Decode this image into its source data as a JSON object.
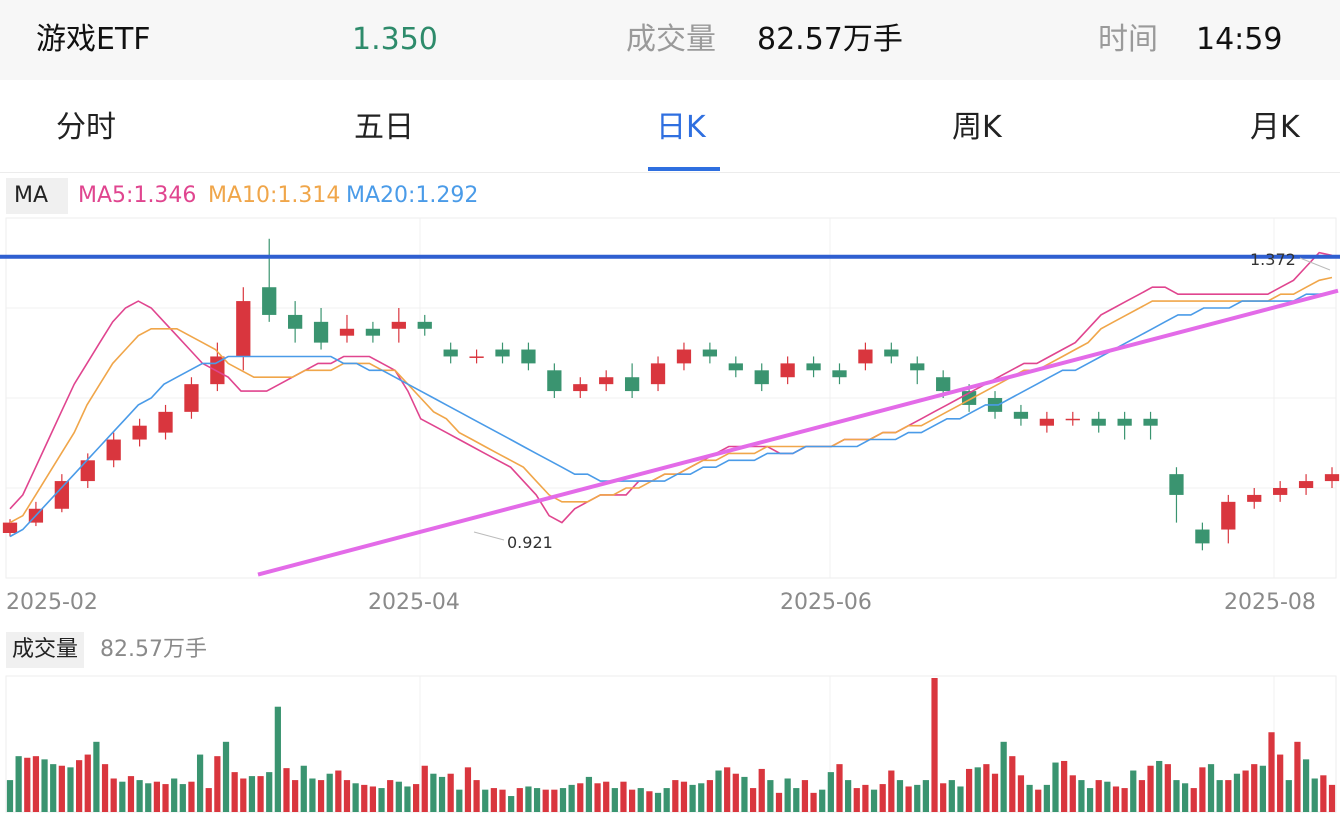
{
  "header": {
    "name": "游戏ETF",
    "price": "1.350",
    "volume_label": "成交量",
    "volume": "82.57万手",
    "time_label": "时间",
    "time": "14:59"
  },
  "tabs": [
    {
      "label": "分时"
    },
    {
      "label": "五日"
    },
    {
      "label": "日K"
    },
    {
      "label": "周K"
    },
    {
      "label": "月K"
    }
  ],
  "ma": {
    "tag": "MA",
    "ma5": "MA5:1.346",
    "ma10": "MA10:1.314",
    "ma20": "MA20:1.292"
  },
  "volume_panel": {
    "tag": "成交量",
    "value": "82.57万手"
  },
  "colors": {
    "up": "#d9363e",
    "down": "#3a9470",
    "ma5": "#e0458f",
    "ma10": "#f0a64a",
    "ma20": "#4a9be8",
    "resistance": "#2f5fd0",
    "support": "#e36be8",
    "active_tab": "#2f6fe0"
  },
  "chart_data": {
    "type": "candlestick",
    "x_ticks": [
      "2025-02",
      "2025-04",
      "2025-06",
      "2025-08"
    ],
    "ylim": [
      0.88,
      1.4
    ],
    "annotations": [
      {
        "label": "1.372",
        "kind": "high"
      },
      {
        "label": "0.921",
        "kind": "low"
      }
    ],
    "resistance_level": 1.344,
    "support_line": [
      [
        0.885,
        1.295
      ]
    ],
    "series": [
      {
        "name": "MA5",
        "values": [
          0.98,
          1.0,
          1.04,
          1.08,
          1.12,
          1.16,
          1.19,
          1.22,
          1.25,
          1.27,
          1.28,
          1.27,
          1.25,
          1.23,
          1.21,
          1.19,
          1.18,
          1.17,
          1.15,
          1.15,
          1.15,
          1.16,
          1.17,
          1.18,
          1.19,
          1.19,
          1.2,
          1.2,
          1.2,
          1.19,
          1.18,
          1.15,
          1.11,
          1.1,
          1.09,
          1.08,
          1.07,
          1.06,
          1.05,
          1.04,
          1.02,
          1.0,
          0.97,
          0.96,
          0.98,
          0.99,
          1.0,
          1.0,
          1.0,
          1.02,
          1.02,
          1.03,
          1.03,
          1.04,
          1.05,
          1.06,
          1.07,
          1.07,
          1.07,
          1.07,
          1.06,
          1.06,
          1.07,
          1.07,
          1.07,
          1.08,
          1.08,
          1.08,
          1.09,
          1.09,
          1.1,
          1.11,
          1.12,
          1.13,
          1.14,
          1.15,
          1.16,
          1.17,
          1.18,
          1.19,
          1.19,
          1.2,
          1.21,
          1.22,
          1.24,
          1.26,
          1.27,
          1.28,
          1.29,
          1.3,
          1.3,
          1.29,
          1.29,
          1.29,
          1.29,
          1.29,
          1.29,
          1.29,
          1.29,
          1.3,
          1.31,
          1.33,
          1.35,
          1.346
        ]
      },
      {
        "name": "MA10",
        "values": [
          0.96,
          0.97,
          1.0,
          1.03,
          1.06,
          1.09,
          1.13,
          1.16,
          1.19,
          1.21,
          1.23,
          1.24,
          1.24,
          1.24,
          1.23,
          1.22,
          1.21,
          1.19,
          1.18,
          1.17,
          1.17,
          1.17,
          1.17,
          1.18,
          1.18,
          1.18,
          1.19,
          1.19,
          1.19,
          1.18,
          1.18,
          1.16,
          1.14,
          1.12,
          1.11,
          1.09,
          1.08,
          1.07,
          1.06,
          1.05,
          1.04,
          1.02,
          1.0,
          0.99,
          0.99,
          0.99,
          1.0,
          1.0,
          1.01,
          1.01,
          1.02,
          1.03,
          1.03,
          1.04,
          1.05,
          1.05,
          1.06,
          1.06,
          1.06,
          1.07,
          1.07,
          1.07,
          1.07,
          1.07,
          1.07,
          1.08,
          1.08,
          1.08,
          1.09,
          1.09,
          1.1,
          1.1,
          1.11,
          1.12,
          1.13,
          1.14,
          1.15,
          1.16,
          1.17,
          1.18,
          1.18,
          1.19,
          1.2,
          1.21,
          1.22,
          1.24,
          1.25,
          1.26,
          1.27,
          1.28,
          1.28,
          1.28,
          1.28,
          1.28,
          1.28,
          1.28,
          1.28,
          1.28,
          1.28,
          1.29,
          1.29,
          1.3,
          1.31,
          1.314
        ]
      },
      {
        "name": "MA20",
        "values": [
          0.94,
          0.95,
          0.97,
          0.99,
          1.01,
          1.03,
          1.05,
          1.07,
          1.09,
          1.11,
          1.13,
          1.14,
          1.16,
          1.17,
          1.18,
          1.19,
          1.19,
          1.2,
          1.2,
          1.2,
          1.2,
          1.2,
          1.2,
          1.2,
          1.2,
          1.2,
          1.19,
          1.19,
          1.18,
          1.18,
          1.17,
          1.16,
          1.15,
          1.14,
          1.13,
          1.12,
          1.11,
          1.1,
          1.09,
          1.08,
          1.07,
          1.06,
          1.05,
          1.04,
          1.03,
          1.03,
          1.02,
          1.02,
          1.02,
          1.02,
          1.02,
          1.02,
          1.03,
          1.03,
          1.04,
          1.04,
          1.05,
          1.05,
          1.05,
          1.06,
          1.06,
          1.06,
          1.07,
          1.07,
          1.07,
          1.07,
          1.07,
          1.08,
          1.08,
          1.08,
          1.09,
          1.09,
          1.1,
          1.11,
          1.11,
          1.12,
          1.13,
          1.13,
          1.14,
          1.15,
          1.16,
          1.17,
          1.18,
          1.18,
          1.19,
          1.2,
          1.21,
          1.22,
          1.23,
          1.24,
          1.25,
          1.26,
          1.26,
          1.27,
          1.27,
          1.27,
          1.28,
          1.28,
          1.28,
          1.28,
          1.28,
          1.29,
          1.29,
          1.292
        ]
      }
    ],
    "candles": [
      [
        0.945,
        0.96,
        0.94,
        0.965
      ],
      [
        0.96,
        0.98,
        0.955,
        0.99
      ],
      [
        0.98,
        1.02,
        0.975,
        1.03
      ],
      [
        1.02,
        1.05,
        1.01,
        1.06
      ],
      [
        1.05,
        1.08,
        1.04,
        1.09
      ],
      [
        1.08,
        1.1,
        1.07,
        1.11
      ],
      [
        1.09,
        1.12,
        1.08,
        1.13
      ],
      [
        1.12,
        1.16,
        1.11,
        1.17
      ],
      [
        1.16,
        1.2,
        1.15,
        1.22
      ],
      [
        1.2,
        1.28,
        1.18,
        1.3
      ],
      [
        1.3,
        1.26,
        1.25,
        1.37
      ],
      [
        1.26,
        1.24,
        1.22,
        1.28
      ],
      [
        1.25,
        1.22,
        1.21,
        1.27
      ],
      [
        1.23,
        1.24,
        1.22,
        1.26
      ],
      [
        1.24,
        1.23,
        1.22,
        1.25
      ],
      [
        1.24,
        1.25,
        1.22,
        1.27
      ],
      [
        1.25,
        1.24,
        1.23,
        1.26
      ],
      [
        1.21,
        1.2,
        1.19,
        1.22
      ],
      [
        1.2,
        1.2,
        1.19,
        1.21
      ],
      [
        1.21,
        1.2,
        1.19,
        1.22
      ],
      [
        1.21,
        1.19,
        1.18,
        1.22
      ],
      [
        1.18,
        1.15,
        1.14,
        1.19
      ],
      [
        1.15,
        1.16,
        1.14,
        1.17
      ],
      [
        1.16,
        1.17,
        1.15,
        1.18
      ],
      [
        1.17,
        1.15,
        1.14,
        1.19
      ],
      [
        1.16,
        1.19,
        1.15,
        1.2
      ],
      [
        1.19,
        1.21,
        1.18,
        1.22
      ],
      [
        1.21,
        1.2,
        1.19,
        1.22
      ],
      [
        1.19,
        1.18,
        1.17,
        1.2
      ],
      [
        1.18,
        1.16,
        1.15,
        1.19
      ],
      [
        1.17,
        1.19,
        1.16,
        1.2
      ],
      [
        1.19,
        1.18,
        1.17,
        1.2
      ],
      [
        1.18,
        1.17,
        1.16,
        1.19
      ],
      [
        1.19,
        1.21,
        1.18,
        1.22
      ],
      [
        1.21,
        1.2,
        1.19,
        1.22
      ],
      [
        1.19,
        1.18,
        1.16,
        1.2
      ],
      [
        1.17,
        1.15,
        1.14,
        1.18
      ],
      [
        1.15,
        1.13,
        1.12,
        1.16
      ],
      [
        1.14,
        1.12,
        1.11,
        1.15
      ],
      [
        1.12,
        1.11,
        1.1,
        1.13
      ],
      [
        1.1,
        1.11,
        1.09,
        1.12
      ],
      [
        1.11,
        1.11,
        1.1,
        1.12
      ],
      [
        1.11,
        1.1,
        1.09,
        1.12
      ],
      [
        1.11,
        1.1,
        1.08,
        1.12
      ],
      [
        1.11,
        1.1,
        1.08,
        1.12
      ],
      [
        1.03,
        1.0,
        0.96,
        1.04
      ],
      [
        0.95,
        0.93,
        0.92,
        0.96
      ],
      [
        0.95,
        0.99,
        0.93,
        1.0
      ],
      [
        0.99,
        1.0,
        0.98,
        1.01
      ],
      [
        1.0,
        1.01,
        0.99,
        1.02
      ],
      [
        1.01,
        1.02,
        1.0,
        1.03
      ],
      [
        1.02,
        1.03,
        1.01,
        1.04
      ]
    ],
    "volume": {
      "values": [
        40,
        70,
        68,
        70,
        66,
        60,
        58,
        56,
        65,
        72,
        88,
        60,
        42,
        38,
        45,
        40,
        36,
        38,
        35,
        42,
        35,
        38,
        72,
        30,
        70,
        88,
        50,
        42,
        45,
        45,
        50,
        132,
        55,
        40,
        58,
        42,
        40,
        48,
        52,
        40,
        36,
        34,
        32,
        30,
        40,
        38,
        32,
        35,
        58,
        48,
        44,
        48,
        28,
        56,
        40,
        28,
        30,
        28,
        20,
        30,
        32,
        30,
        28,
        28,
        30,
        34,
        36,
        44,
        36,
        38,
        30,
        38,
        28,
        30,
        26,
        24,
        30,
        40,
        38,
        34,
        36,
        40,
        52,
        56,
        48,
        44,
        30,
        54,
        40,
        24,
        42,
        30,
        40,
        24,
        28,
        50,
        60,
        40,
        30,
        34,
        28,
        35,
        52,
        40,
        32,
        34,
        40,
        168,
        36,
        40,
        32,
        54,
        56,
        60,
        48,
        88,
        70,
        46,
        34,
        28,
        34,
        62,
        64,
        46,
        40,
        30,
        40,
        38,
        32,
        30,
        52,
        40,
        58,
        64,
        60,
        40,
        36,
        30,
        56,
        60,
        40,
        40,
        48,
        52,
        60,
        58,
        100,
        72,
        40,
        88,
        66,
        42,
        46,
        34
      ]
    }
  }
}
